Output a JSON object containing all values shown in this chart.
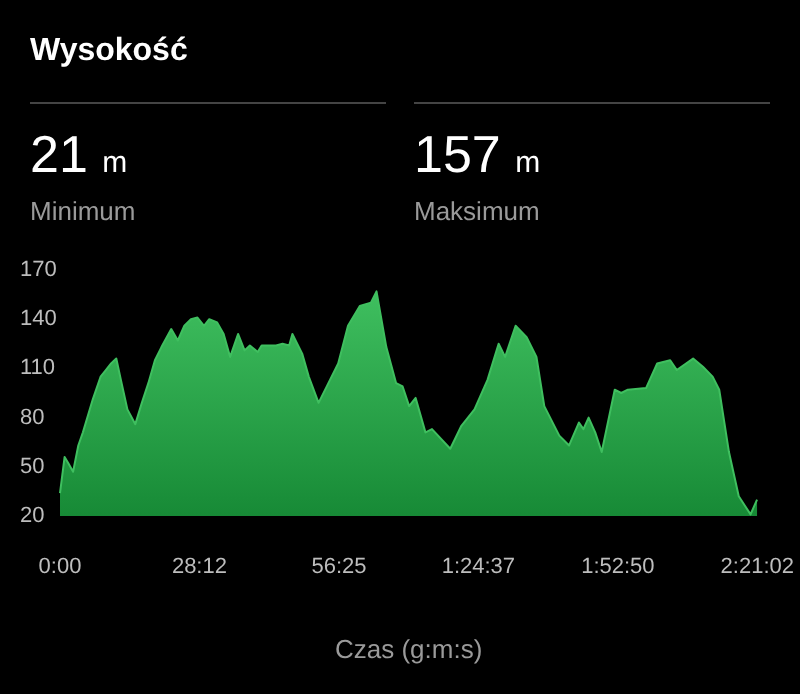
{
  "chart_data": {
    "type": "area",
    "title": "Wysokość",
    "annotations": [
      "21 m",
      "Minimum",
      "157 m",
      "Maksimum"
    ],
    "xlabel": "Czas (g:m:s)",
    "x": [
      0,
      56,
      103,
      159,
      222,
      278,
      397,
      493,
      556,
      620,
      683,
      739,
      818,
      914,
      993,
      1072,
      1152,
      1231,
      1350,
      1430,
      1509,
      1589,
      1668,
      1748,
      1811,
      1907,
      1986,
      2065,
      2161,
      2240,
      2304,
      2399,
      2447,
      2622,
      2701,
      2781,
      2820,
      2939,
      3019,
      3138,
      3257,
      3376,
      3495,
      3638,
      3773,
      3841,
      3960,
      4079,
      4158,
      4237,
      4316,
      4435,
      4514,
      4736,
      4871,
      5030,
      5188,
      5323,
      5402,
      5529,
      5663,
      5782,
      5877,
      6059,
      6178,
      6297,
      6352,
      6415,
      6495,
      6574,
      6732,
      6811,
      6891,
      7112,
      7247,
      7405,
      7485,
      7683,
      7802,
      7920,
      8000,
      8118,
      8237,
      8380,
      8459
    ],
    "series": [
      {
        "color": "#3fbf5f",
        "values": [
          34,
          56,
          52,
          47,
          63,
          71,
          91,
          105,
          109,
          113,
          116,
          103,
          85,
          76,
          89,
          101,
          115,
          123,
          134,
          127,
          136,
          140,
          141,
          136,
          140,
          138,
          131,
          117,
          131,
          121,
          124,
          120,
          124,
          124,
          125,
          124,
          131,
          119,
          105,
          89,
          101,
          113,
          136,
          148,
          150,
          157,
          123,
          101,
          99,
          87,
          92,
          71,
          73,
          61,
          75,
          85,
          103,
          125,
          117,
          136,
          129,
          117,
          87,
          69,
          63,
          77,
          73,
          80,
          71,
          59,
          97,
          95,
          97,
          98,
          113,
          115,
          109,
          116,
          111,
          105,
          97,
          59,
          32,
          21,
          30
        ]
      }
    ],
    "xlim": [
      0,
      8462
    ],
    "xticks": [
      {
        "value": 0,
        "label": "0:00"
      },
      {
        "value": 1692,
        "label": "28:12"
      },
      {
        "value": 3385,
        "label": "56:25"
      },
      {
        "value": 5077,
        "label": "1:24:37"
      },
      {
        "value": 6770,
        "label": "1:52:50"
      },
      {
        "value": 8462,
        "label": "2:21:02"
      }
    ],
    "ylim": [
      20,
      170
    ],
    "yticks": [
      20,
      50,
      80,
      110,
      140,
      170
    ],
    "grid": false
  }
}
